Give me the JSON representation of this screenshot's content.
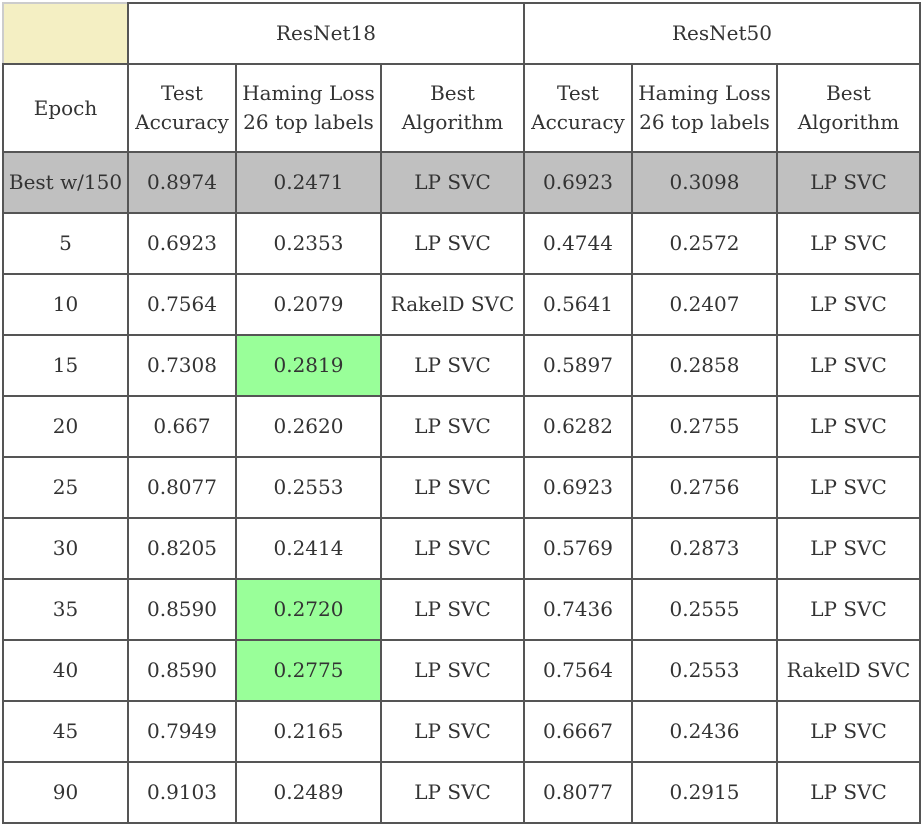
{
  "colors": {
    "corner_cell": "#f4efc3",
    "best_row": "#c0c0c0",
    "highlight": "#99ff99",
    "border": "#555555"
  },
  "table": {
    "groups": [
      "ResNet18",
      "ResNet50"
    ],
    "headers": [
      [
        "Epoch"
      ],
      [
        "Test",
        "Accuracy"
      ],
      [
        "Haming Loss",
        "26 top labels"
      ],
      [
        "Best",
        "Algorithm"
      ],
      [
        "Test",
        "Accuracy"
      ],
      [
        "Haming Loss",
        "26 top labels"
      ],
      [
        "Best",
        "Algorithm"
      ]
    ],
    "rows": [
      {
        "cells": [
          "Best w/150",
          "0.8974",
          "0.2471",
          "LP SVC",
          "0.6923",
          "0.3098",
          "LP SVC"
        ],
        "best": true,
        "highlight": []
      },
      {
        "cells": [
          "5",
          "0.6923",
          "0.2353",
          "LP SVC",
          "0.4744",
          "0.2572",
          "LP SVC"
        ],
        "best": false,
        "highlight": []
      },
      {
        "cells": [
          "10",
          "0.7564",
          "0.2079",
          "RakelD SVC",
          "0.5641",
          "0.2407",
          "LP SVC"
        ],
        "best": false,
        "highlight": []
      },
      {
        "cells": [
          "15",
          "0.7308",
          "0.2819",
          "LP SVC",
          "0.5897",
          "0.2858",
          "LP SVC"
        ],
        "best": false,
        "highlight": [
          2
        ]
      },
      {
        "cells": [
          "20",
          "0.667",
          "0.2620",
          "LP SVC",
          "0.6282",
          "0.2755",
          "LP SVC"
        ],
        "best": false,
        "highlight": []
      },
      {
        "cells": [
          "25",
          "0.8077",
          "0.2553",
          "LP SVC",
          "0.6923",
          "0.2756",
          "LP SVC"
        ],
        "best": false,
        "highlight": []
      },
      {
        "cells": [
          "30",
          "0.8205",
          "0.2414",
          "LP SVC",
          "0.5769",
          "0.2873",
          "LP SVC"
        ],
        "best": false,
        "highlight": []
      },
      {
        "cells": [
          "35",
          "0.8590",
          "0.2720",
          "LP SVC",
          "0.7436",
          "0.2555",
          "LP SVC"
        ],
        "best": false,
        "highlight": [
          2
        ]
      },
      {
        "cells": [
          "40",
          "0.8590",
          "0.2775",
          "LP SVC",
          "0.7564",
          "0.2553",
          "RakelD SVC"
        ],
        "best": false,
        "highlight": [
          2
        ]
      },
      {
        "cells": [
          "45",
          "0.7949",
          "0.2165",
          "LP SVC",
          "0.6667",
          "0.2436",
          "LP SVC"
        ],
        "best": false,
        "highlight": []
      },
      {
        "cells": [
          "90",
          "0.9103",
          "0.2489",
          "LP SVC",
          "0.8077",
          "0.2915",
          "LP SVC"
        ],
        "best": false,
        "highlight": []
      }
    ]
  }
}
